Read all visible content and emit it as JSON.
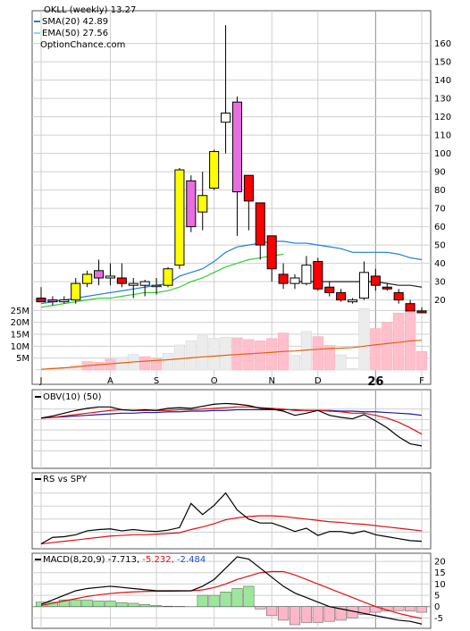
{
  "chart_data": [
    {
      "type": "candlestick",
      "legend": [
        {
          "label": "OKLL (weekly) 13.27",
          "color": ""
        },
        {
          "label": "SMA(20) 42.89",
          "color": "#1e7fd6"
        },
        {
          "label": "EMA(50) 27.56",
          "color": "#8fd8f0"
        },
        {
          "label": "OptionChance.com",
          "color": ""
        }
      ],
      "x_labels": [
        {
          "week": 0,
          "label": "J"
        },
        {
          "week": 6,
          "label": "A"
        },
        {
          "week": 10,
          "label": "S"
        },
        {
          "week": 15,
          "label": "O"
        },
        {
          "week": 20,
          "label": "N"
        },
        {
          "week": 24,
          "label": "D"
        },
        {
          "week": 29,
          "label": "26"
        },
        {
          "week": 33,
          "label": "F"
        }
      ],
      "year_marker_week": 29,
      "price_ylim": [
        12,
        172
      ],
      "price_ticks": [
        20,
        30,
        40,
        50,
        60,
        70,
        80,
        90,
        100,
        110,
        120,
        130,
        140,
        150,
        160
      ],
      "candles": [
        {
          "o": 21,
          "h": 27,
          "l": 19,
          "c": 19,
          "color": "#b0102a"
        },
        {
          "o": 19,
          "h": 22,
          "l": 17,
          "c": 20,
          "color": "#e86ee0"
        },
        {
          "o": 20,
          "h": 22,
          "l": 18,
          "c": 19,
          "color": "#ffffff"
        },
        {
          "o": 20,
          "h": 32,
          "l": 18,
          "c": 29,
          "color": "#ffff00"
        },
        {
          "o": 29,
          "h": 36,
          "l": 27,
          "c": 34,
          "color": "#ffff00"
        },
        {
          "o": 32,
          "h": 42,
          "l": 28,
          "c": 36,
          "color": "#e86ee0"
        },
        {
          "o": 33,
          "h": 40,
          "l": 28,
          "c": 32,
          "color": "#ffffff"
        },
        {
          "o": 32,
          "h": 40,
          "l": 27,
          "c": 29,
          "color": "#ff0000"
        },
        {
          "o": 29,
          "h": 32,
          "l": 21,
          "c": 28,
          "color": "#ffffff"
        },
        {
          "o": 28,
          "h": 31,
          "l": 22,
          "c": 30,
          "color": "#ffffff"
        },
        {
          "o": 28,
          "h": 32,
          "l": 23,
          "c": 28,
          "color": "#ffffff"
        },
        {
          "o": 28,
          "h": 38,
          "l": 27,
          "c": 37,
          "color": "#ffff00"
        },
        {
          "o": 39,
          "h": 92,
          "l": 37,
          "c": 91,
          "color": "#ffff00"
        },
        {
          "o": 60,
          "h": 88,
          "l": 57,
          "c": 85,
          "color": "#e86ee0"
        },
        {
          "o": 68,
          "h": 90,
          "l": 58,
          "c": 77,
          "color": "#ffff00"
        },
        {
          "o": 81,
          "h": 102,
          "l": 80,
          "c": 101,
          "color": "#ffff00"
        },
        {
          "o": 117,
          "h": 170,
          "l": 100,
          "c": 122,
          "color": "#ffffff"
        },
        {
          "o": 79,
          "h": 131,
          "l": 55,
          "c": 128,
          "color": "#e86ee0"
        },
        {
          "o": 88,
          "h": 88,
          "l": 58,
          "c": 74,
          "color": "#ff0000"
        },
        {
          "o": 73,
          "h": 73,
          "l": 42,
          "c": 50,
          "color": "#ff0000"
        },
        {
          "o": 55,
          "h": 55,
          "l": 30,
          "c": 37,
          "color": "#ff0000"
        },
        {
          "o": 34,
          "h": 40,
          "l": 26,
          "c": 29,
          "color": "#ff0000"
        },
        {
          "o": 32,
          "h": 34,
          "l": 26,
          "c": 29,
          "color": "#ffffff"
        },
        {
          "o": 29,
          "h": 44,
          "l": 28,
          "c": 39,
          "color": "#ffffff"
        },
        {
          "o": 41,
          "h": 43,
          "l": 25,
          "c": 26,
          "color": "#ff0000"
        },
        {
          "o": 27,
          "h": 30,
          "l": 22,
          "c": 24,
          "color": "#ff0000"
        },
        {
          "o": 24,
          "h": 26,
          "l": 19,
          "c": 20,
          "color": "#ff0000"
        },
        {
          "o": 19,
          "h": 21,
          "l": 18,
          "c": 20,
          "color": "#ffffff"
        },
        {
          "o": 21,
          "h": 41,
          "l": 20,
          "c": 35,
          "color": "#ffffff"
        },
        {
          "o": 33,
          "h": 37,
          "l": 25,
          "c": 28,
          "color": "#ff0000"
        },
        {
          "o": 27,
          "h": 29,
          "l": 25,
          "c": 26,
          "color": "#ff0000"
        },
        {
          "o": 24,
          "h": 26,
          "l": 18,
          "c": 20,
          "color": "#ff0000"
        },
        {
          "o": 18,
          "h": 20,
          "l": 14,
          "c": 14,
          "color": "#ff0000"
        },
        {
          "o": 14,
          "h": 16,
          "l": 13,
          "c": 13,
          "color": "#ff0000"
        }
      ],
      "sma20": [
        18,
        19,
        20,
        21,
        22,
        23,
        24,
        25,
        26,
        27,
        28,
        29,
        33,
        35,
        37,
        41,
        46,
        49,
        50,
        51,
        52,
        52,
        51,
        51,
        50,
        49,
        48,
        46,
        46,
        46,
        46,
        45,
        43,
        42
      ],
      "ema50": [
        null,
        null,
        null,
        null,
        null,
        null,
        null,
        null,
        null,
        null,
        null,
        null,
        null,
        null,
        null,
        null,
        null,
        null,
        null,
        null,
        null,
        null,
        30,
        30,
        30,
        30,
        30,
        30,
        30,
        30,
        29,
        28,
        28,
        27
      ],
      "ema50_early": [
        16,
        17,
        18,
        19,
        20,
        21,
        21,
        22,
        23,
        24,
        24,
        25,
        27,
        30,
        32,
        35,
        38,
        40,
        42,
        43,
        44,
        45
      ],
      "volume_ylim": [
        0,
        30
      ],
      "volume_ticks": [
        5,
        10,
        15,
        20,
        25
      ],
      "volume_tick_labels": [
        "5M",
        "10M",
        "15M",
        "20M",
        "25M"
      ],
      "volume": [
        0.3,
        0.8,
        1.2,
        2.0,
        3.5,
        3.2,
        4.5,
        5.3,
        6.5,
        5.6,
        4.7,
        7.0,
        10.5,
        12.3,
        14.4,
        13.3,
        13.8,
        13.5,
        12.8,
        12.2,
        13.2,
        15.5,
        6.2,
        16.2,
        14.0,
        10.3,
        6.4,
        0.6,
        25.8,
        17.4,
        20.0,
        23.9,
        25.0,
        7.8
      ],
      "volume_pink": [
        false,
        false,
        false,
        false,
        true,
        true,
        true,
        false,
        false,
        true,
        true,
        false,
        false,
        false,
        false,
        false,
        false,
        true,
        true,
        true,
        true,
        true,
        false,
        false,
        true,
        true,
        false,
        false,
        false,
        true,
        true,
        true,
        true,
        true
      ],
      "volume_avg": [
        0.3,
        0.6,
        0.9,
        1.3,
        1.8,
        2.2,
        2.6,
        3.0,
        3.4,
        3.7,
        4.0,
        4.3,
        4.7,
        5.1,
        5.5,
        5.8,
        6.2,
        6.5,
        6.8,
        7.1,
        7.4,
        7.8,
        8.0,
        8.4,
        8.7,
        9.0,
        9.2,
        9.4,
        10.0,
        10.6,
        11.1,
        11.6,
        12.2,
        12.5
      ],
      "obv": {
        "label": "OBV(10) (50)",
        "ylim": [
          -60,
          30
        ],
        "obv": [
          2,
          5,
          9,
          13,
          16,
          18,
          18,
          14,
          13,
          14,
          13,
          16,
          17,
          16,
          19,
          22,
          23,
          22,
          20,
          16,
          15,
          12,
          6,
          9,
          13,
          6,
          3,
          1,
          7,
          -2,
          -12,
          -25,
          -35,
          -38
        ],
        "signal": [
          2,
          3,
          5,
          7,
          9,
          11,
          13,
          14,
          13,
          13,
          13,
          13,
          14,
          14,
          15,
          16,
          17,
          18,
          18,
          17,
          16,
          15,
          13,
          13,
          13,
          12,
          11,
          9,
          9,
          6,
          2,
          -4,
          -12,
          -21
        ],
        "long": [
          2,
          3,
          4,
          5,
          6,
          7,
          8,
          9,
          9,
          10,
          10,
          11,
          11,
          12,
          12,
          13,
          13,
          14,
          14,
          14,
          14,
          14,
          14,
          13,
          13,
          13,
          12,
          12,
          11,
          11,
          10,
          9,
          8,
          6
        ]
      },
      "rs": {
        "label": "RS vs SPY",
        "ylim": [
          0,
          10
        ],
        "rs": [
          0.2,
          1.2,
          1.3,
          1.6,
          2.2,
          2.4,
          2.5,
          2.2,
          2.4,
          2.2,
          2.1,
          2.3,
          2.7,
          6.4,
          4.7,
          6.1,
          8.0,
          5.4,
          4.0,
          3.4,
          3.4,
          2.8,
          2.1,
          2.6,
          1.5,
          2.1,
          2.1,
          1.8,
          2.2,
          1.6,
          1.3,
          1.0,
          0.7,
          0.6
        ],
        "signal": [
          0.2,
          0.4,
          0.6,
          0.8,
          1.0,
          1.2,
          1.4,
          1.5,
          1.6,
          1.6,
          1.7,
          1.8,
          1.9,
          2.4,
          2.8,
          3.3,
          3.9,
          4.2,
          4.4,
          4.5,
          4.5,
          4.4,
          4.2,
          4.0,
          3.8,
          3.6,
          3.5,
          3.3,
          3.2,
          3.0,
          2.8,
          2.6,
          2.4,
          2.2
        ]
      },
      "macd": {
        "label_prefix": "MACD(8,20,9)",
        "label_macd": "-7.713,",
        "label_signal": "-5.232,",
        "label_hist": "-2.484",
        "ylim": [
          -8,
          22
        ],
        "ticks": [
          -5,
          0,
          5,
          10,
          15,
          20
        ],
        "macd": [
          1,
          3,
          5,
          7,
          8,
          8.5,
          9,
          8.5,
          8,
          7.5,
          7,
          7,
          7,
          7,
          9,
          12,
          17,
          22,
          21,
          17,
          13,
          9,
          6,
          4,
          2,
          0,
          -1,
          -2,
          -3,
          -4,
          -5,
          -6,
          -6.5,
          -7.7
        ],
        "signal": [
          0.5,
          1.5,
          2.5,
          3.5,
          4.5,
          5.2,
          5.8,
          6.2,
          6.5,
          6.7,
          6.8,
          6.8,
          6.9,
          7,
          7.4,
          8.4,
          10,
          12,
          13.5,
          15,
          15.5,
          15.5,
          14,
          12,
          10,
          8,
          6,
          4,
          2,
          0,
          -1.5,
          -3,
          -4.2,
          -5.2
        ],
        "hist": [
          2,
          2,
          3,
          3,
          3,
          2.5,
          2.5,
          1.8,
          1.5,
          1,
          0.5,
          0.2,
          0.1,
          0,
          5,
          5,
          6.5,
          8,
          9,
          -1,
          -4,
          -6,
          -8,
          -7,
          -7,
          -6.5,
          -6,
          -5,
          -3.5,
          -2.5,
          -2,
          -1.8,
          -2,
          -2.5
        ],
        "hist_positive_color": "#9be89b",
        "hist_negative_color": "#ffb6c8"
      }
    }
  ]
}
